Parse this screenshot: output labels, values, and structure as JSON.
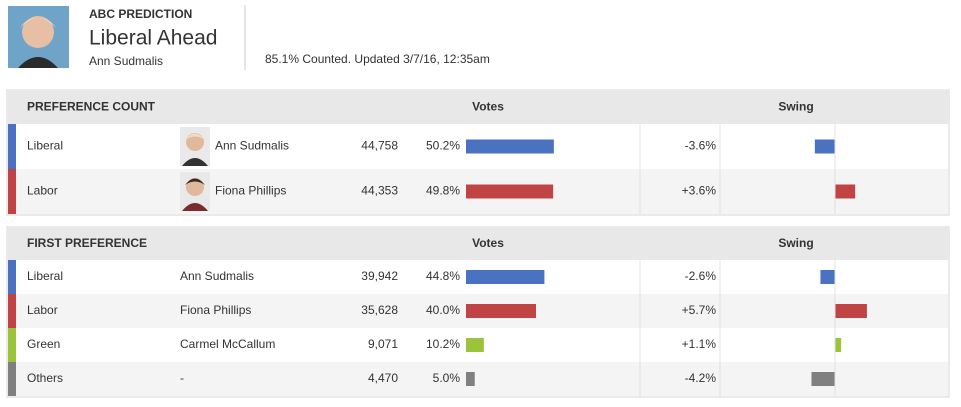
{
  "header": {
    "kicker": "ABC PREDICTION",
    "title": "Liberal Ahead",
    "candidate": "Ann Sudmalis",
    "status": "85.1% Counted. Updated 3/7/16, 12:35am"
  },
  "tables": [
    {
      "title": "PREFERENCE COUNT",
      "votes_heading": "Votes",
      "swing_heading": "Swing",
      "rows": [
        {
          "party": "Liberal",
          "color": "#4a72c0",
          "candidate": "Ann Sudmalis",
          "photo": true,
          "votes": "44,758",
          "pct": 50.2,
          "pct_label": "50.2%",
          "swing": -3.6,
          "swing_label": "-3.6%"
        },
        {
          "party": "Labor",
          "color": "#c04444",
          "candidate": "Fiona Phillips",
          "photo": true,
          "votes": "44,353",
          "pct": 49.8,
          "pct_label": "49.8%",
          "swing": 3.6,
          "swing_label": "+3.6%"
        }
      ]
    },
    {
      "title": "FIRST PREFERENCE",
      "votes_heading": "Votes",
      "swing_heading": "Swing",
      "rows": [
        {
          "party": "Liberal",
          "color": "#4a72c0",
          "candidate": "Ann Sudmalis",
          "votes": "39,942",
          "pct": 44.8,
          "pct_label": "44.8%",
          "swing": -2.6,
          "swing_label": "-2.6%"
        },
        {
          "party": "Labor",
          "color": "#c04444",
          "candidate": "Fiona Phillips",
          "votes": "35,628",
          "pct": 40.0,
          "pct_label": "40.0%",
          "swing": 5.7,
          "swing_label": "+5.7%"
        },
        {
          "party": "Green",
          "color": "#9cc43a",
          "candidate": "Carmel McCallum",
          "votes": "9,071",
          "pct": 10.2,
          "pct_label": "10.2%",
          "swing": 1.1,
          "swing_label": "+1.1%"
        },
        {
          "party": "Others",
          "color": "#808080",
          "candidate": "-",
          "votes": "4,470",
          "pct": 5.0,
          "pct_label": "5.0%",
          "swing": -4.2,
          "swing_label": "-4.2%"
        }
      ]
    }
  ]
}
